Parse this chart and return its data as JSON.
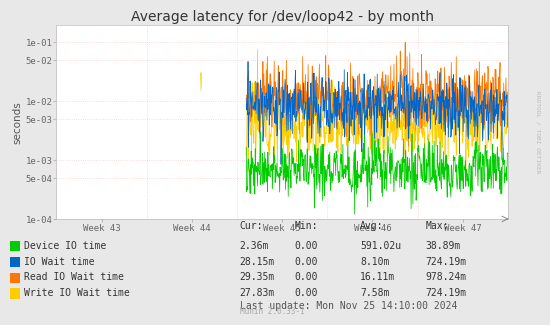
{
  "title": "Average latency for /dev/loop42 - by month",
  "ylabel": "seconds",
  "background_color": "#e8e8e8",
  "plot_bg_color": "#ffffff",
  "grid_color_h": "#ffcccc",
  "grid_color_v": "#ffcccc",
  "week_labels": [
    "Week 43",
    "Week 44",
    "Week 45",
    "Week 46",
    "Week 47"
  ],
  "legend_items": [
    {
      "label": "Device IO time",
      "color": "#00cc00"
    },
    {
      "label": "IO Wait time",
      "color": "#0066cc"
    },
    {
      "label": "Read IO Wait time",
      "color": "#ff7700"
    },
    {
      "label": "Write IO Wait time",
      "color": "#ffcc00"
    }
  ],
  "legend_cols": {
    "headers": [
      "Cur:",
      "Min:",
      "Avg:",
      "Max:"
    ],
    "rows": [
      [
        "2.36m",
        "0.00",
        "591.02u",
        "38.89m"
      ],
      [
        "28.15m",
        "0.00",
        "8.10m",
        "724.19m"
      ],
      [
        "29.35m",
        "0.00",
        "16.11m",
        "978.24m"
      ],
      [
        "27.83m",
        "0.00",
        "7.58m",
        "724.19m"
      ]
    ]
  },
  "footer": "Last update: Mon Nov 25 14:10:00 2024",
  "munin": "Munin 2.0.33-1",
  "watermark": "RRDTOOL / TOBI OETIKER",
  "title_fontsize": 10,
  "axis_fontsize": 6.5,
  "legend_fontsize": 7
}
